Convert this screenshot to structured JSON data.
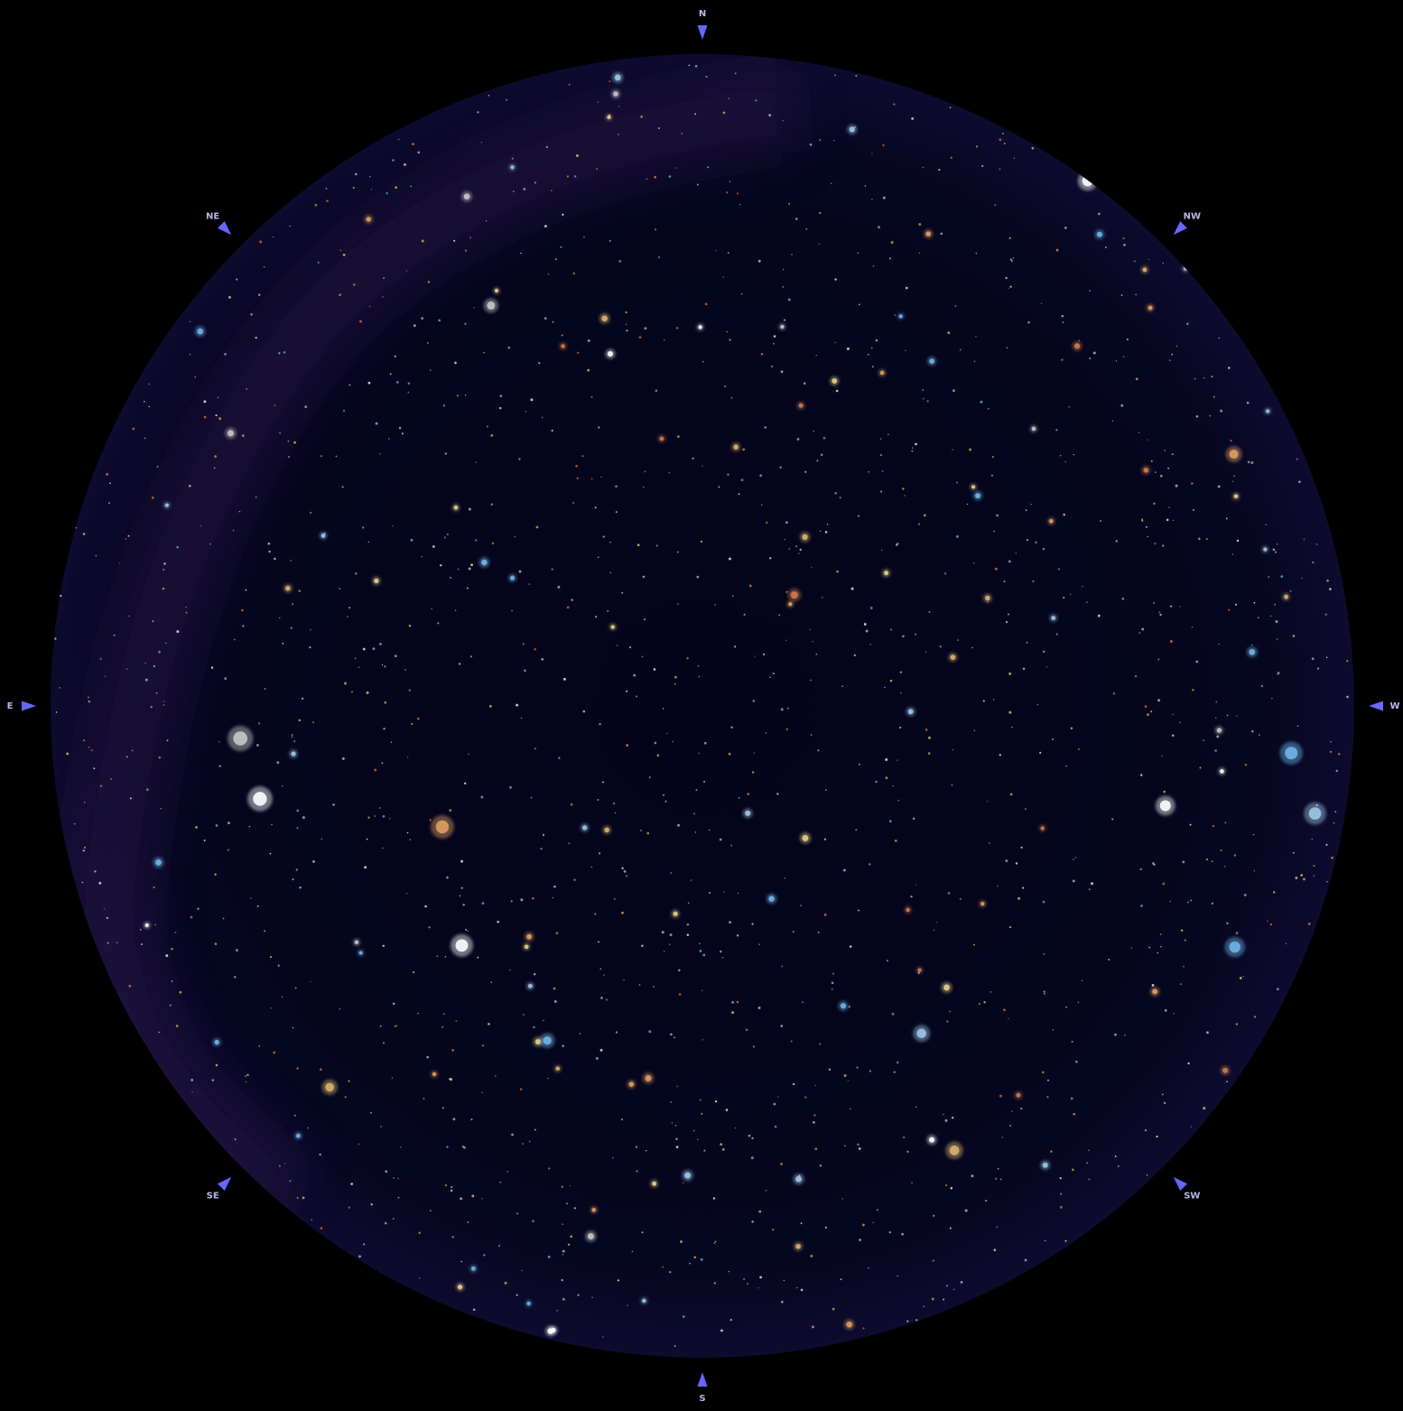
{
  "compass_labels": [
    "N",
    "NE",
    "E",
    "SE",
    "S",
    "SW",
    "W",
    "NW"
  ]
}
